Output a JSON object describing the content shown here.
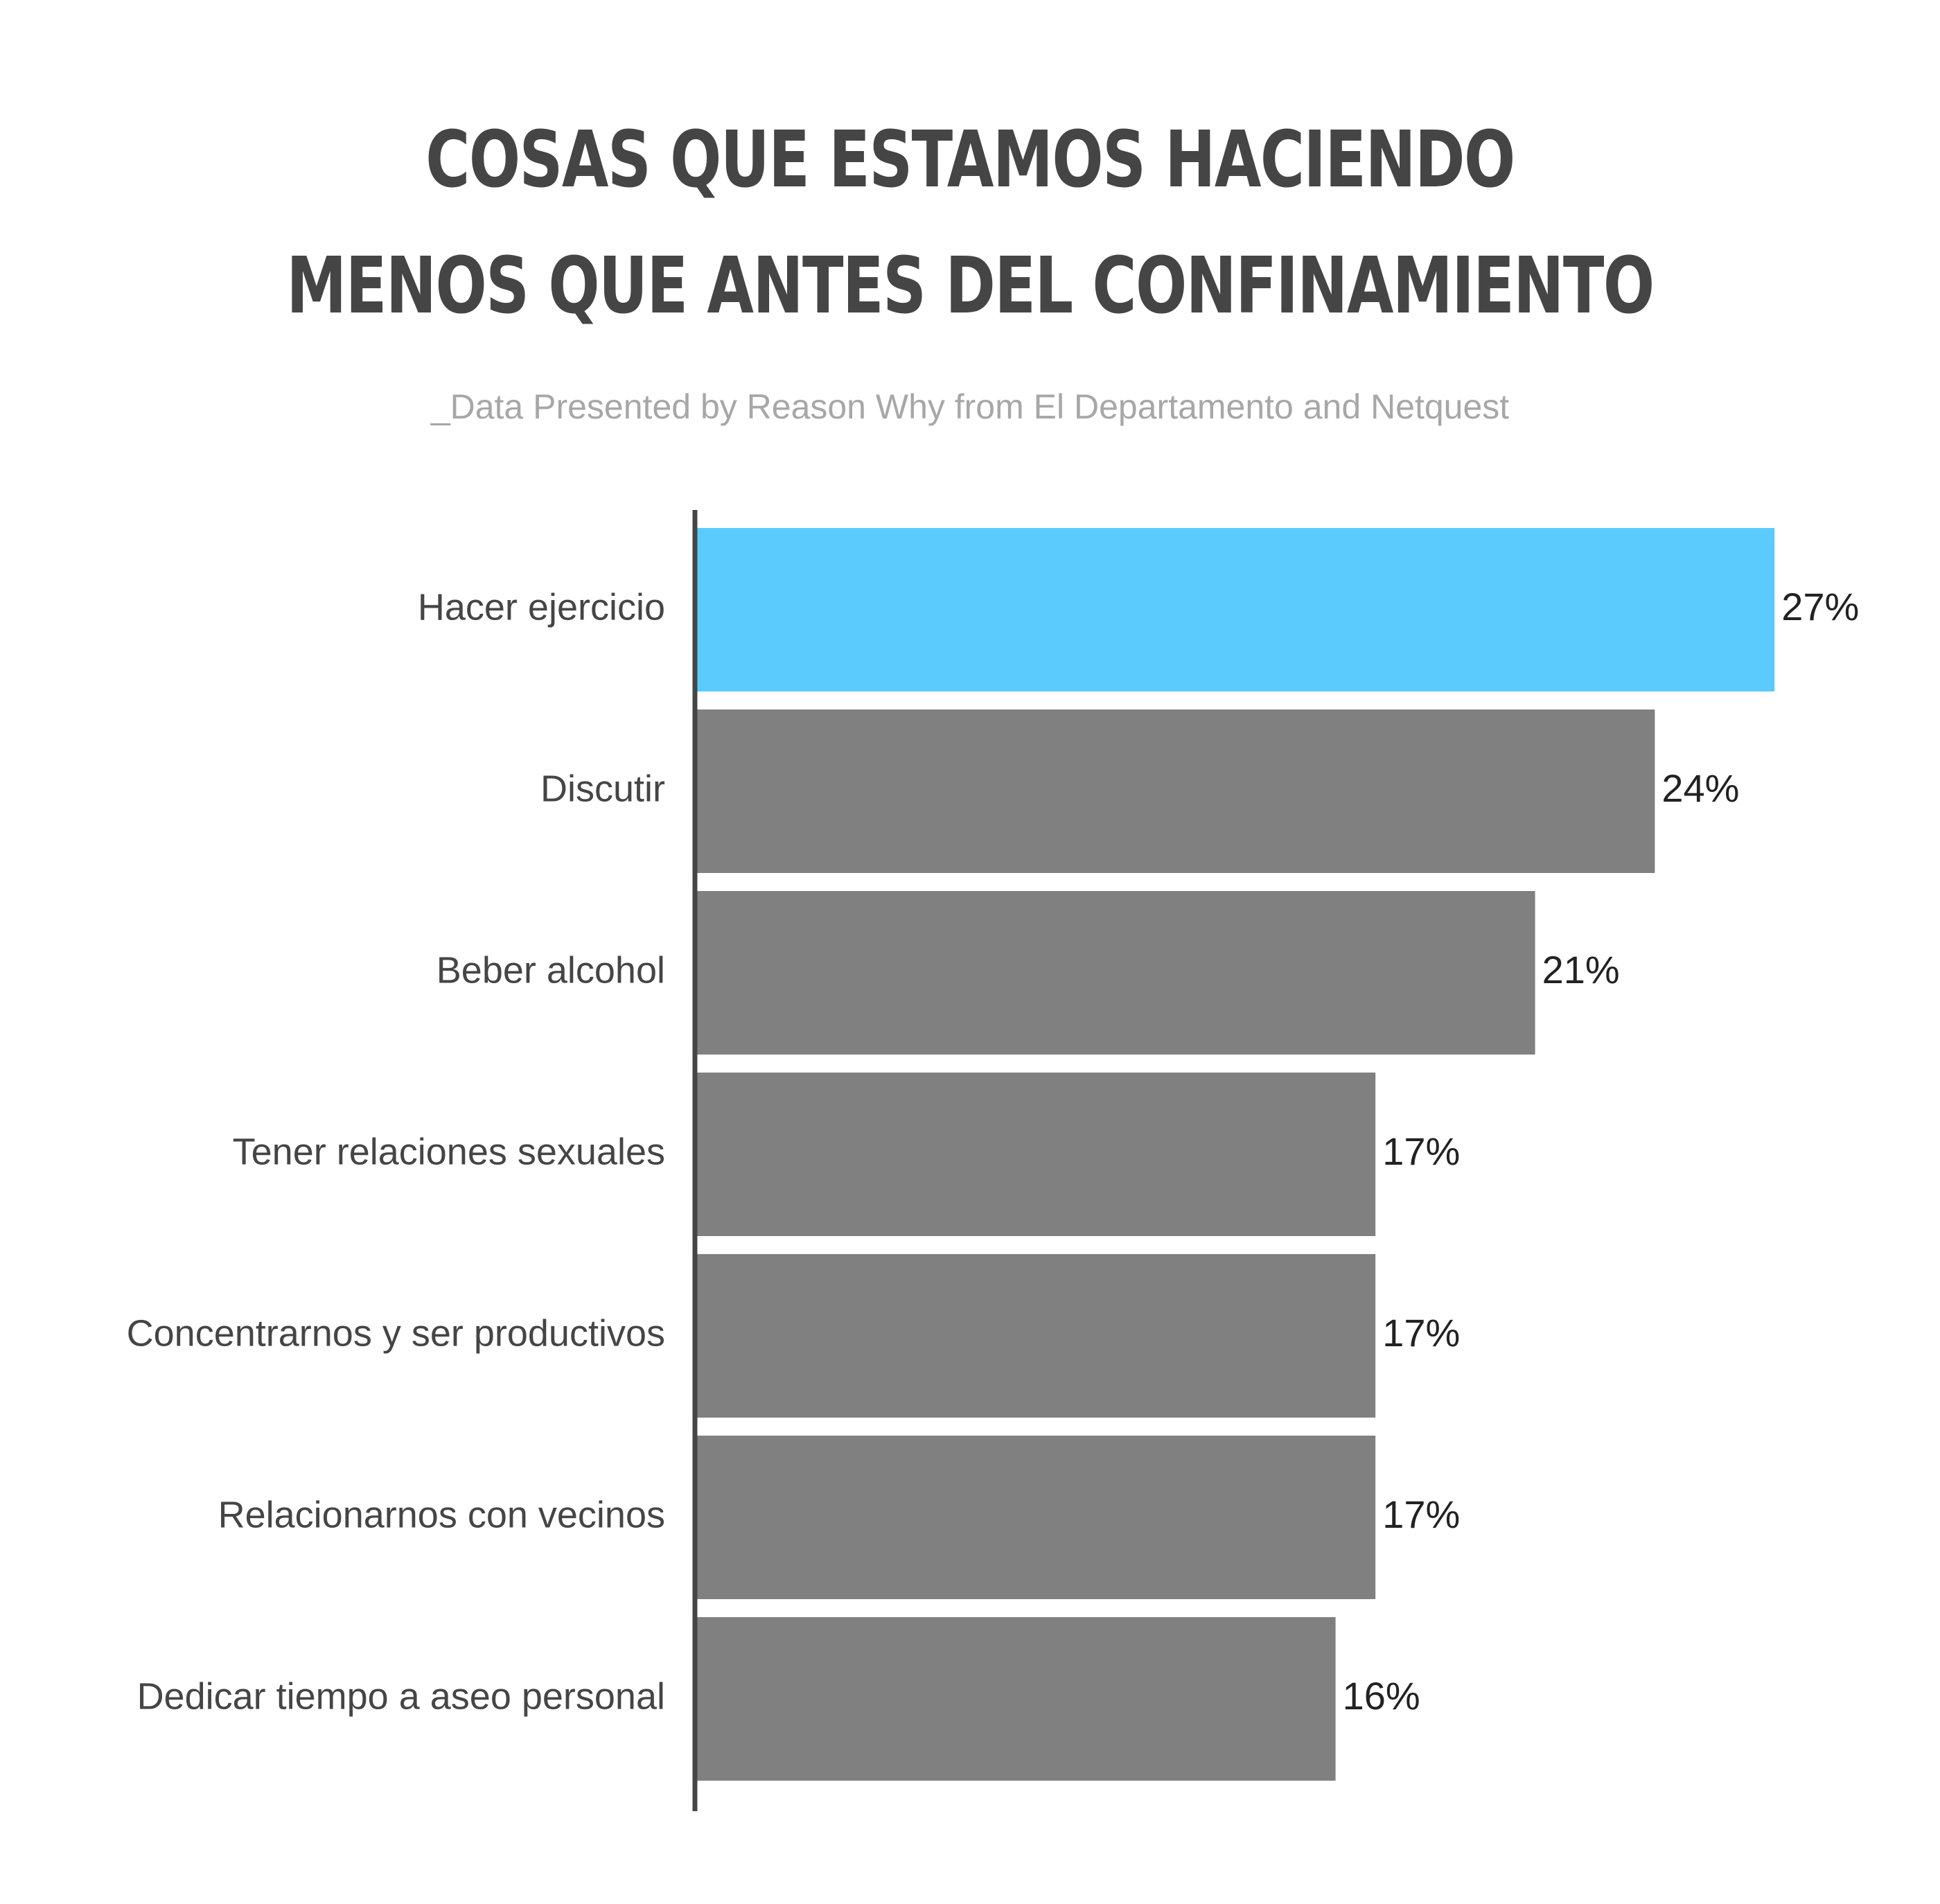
{
  "title_lines": [
    "COSAS QUE ESTAMOS HACIENDO",
    "MENOS QUE ANTES DEL CONFINAMIENTO"
  ],
  "subtitle": "_Data Presented by Reason Why from El Departamento and Netquest",
  "colors": {
    "highlight": "#5bcbfd",
    "bar": "#808080",
    "axis": "#454545",
    "title": "#454545",
    "subtitle": "#a7a7a7"
  },
  "chart_data": {
    "type": "bar",
    "orientation": "horizontal",
    "title": "COSAS QUE ESTAMOS HACIENDO MENOS QUE ANTES DEL CONFINAMIENTO",
    "subtitle": "_Data Presented by Reason Why from El Departamento and Netquest",
    "categories": [
      "Hacer ejercicio",
      "Discutir",
      "Beber alcohol",
      "Tener relaciones sexuales",
      "Concentrarnos y ser productivos",
      "Relacionarnos con vecinos",
      "Dedicar tiempo a aseo personal"
    ],
    "values": [
      27,
      24,
      21,
      17,
      17,
      17,
      16
    ],
    "value_labels": [
      "27%",
      "24%",
      "21%",
      "17%",
      "17%",
      "17%",
      "16%"
    ],
    "unit": "%",
    "highlight_index": 0,
    "xlim": [
      0,
      27
    ],
    "grid": false,
    "legend": "none"
  }
}
